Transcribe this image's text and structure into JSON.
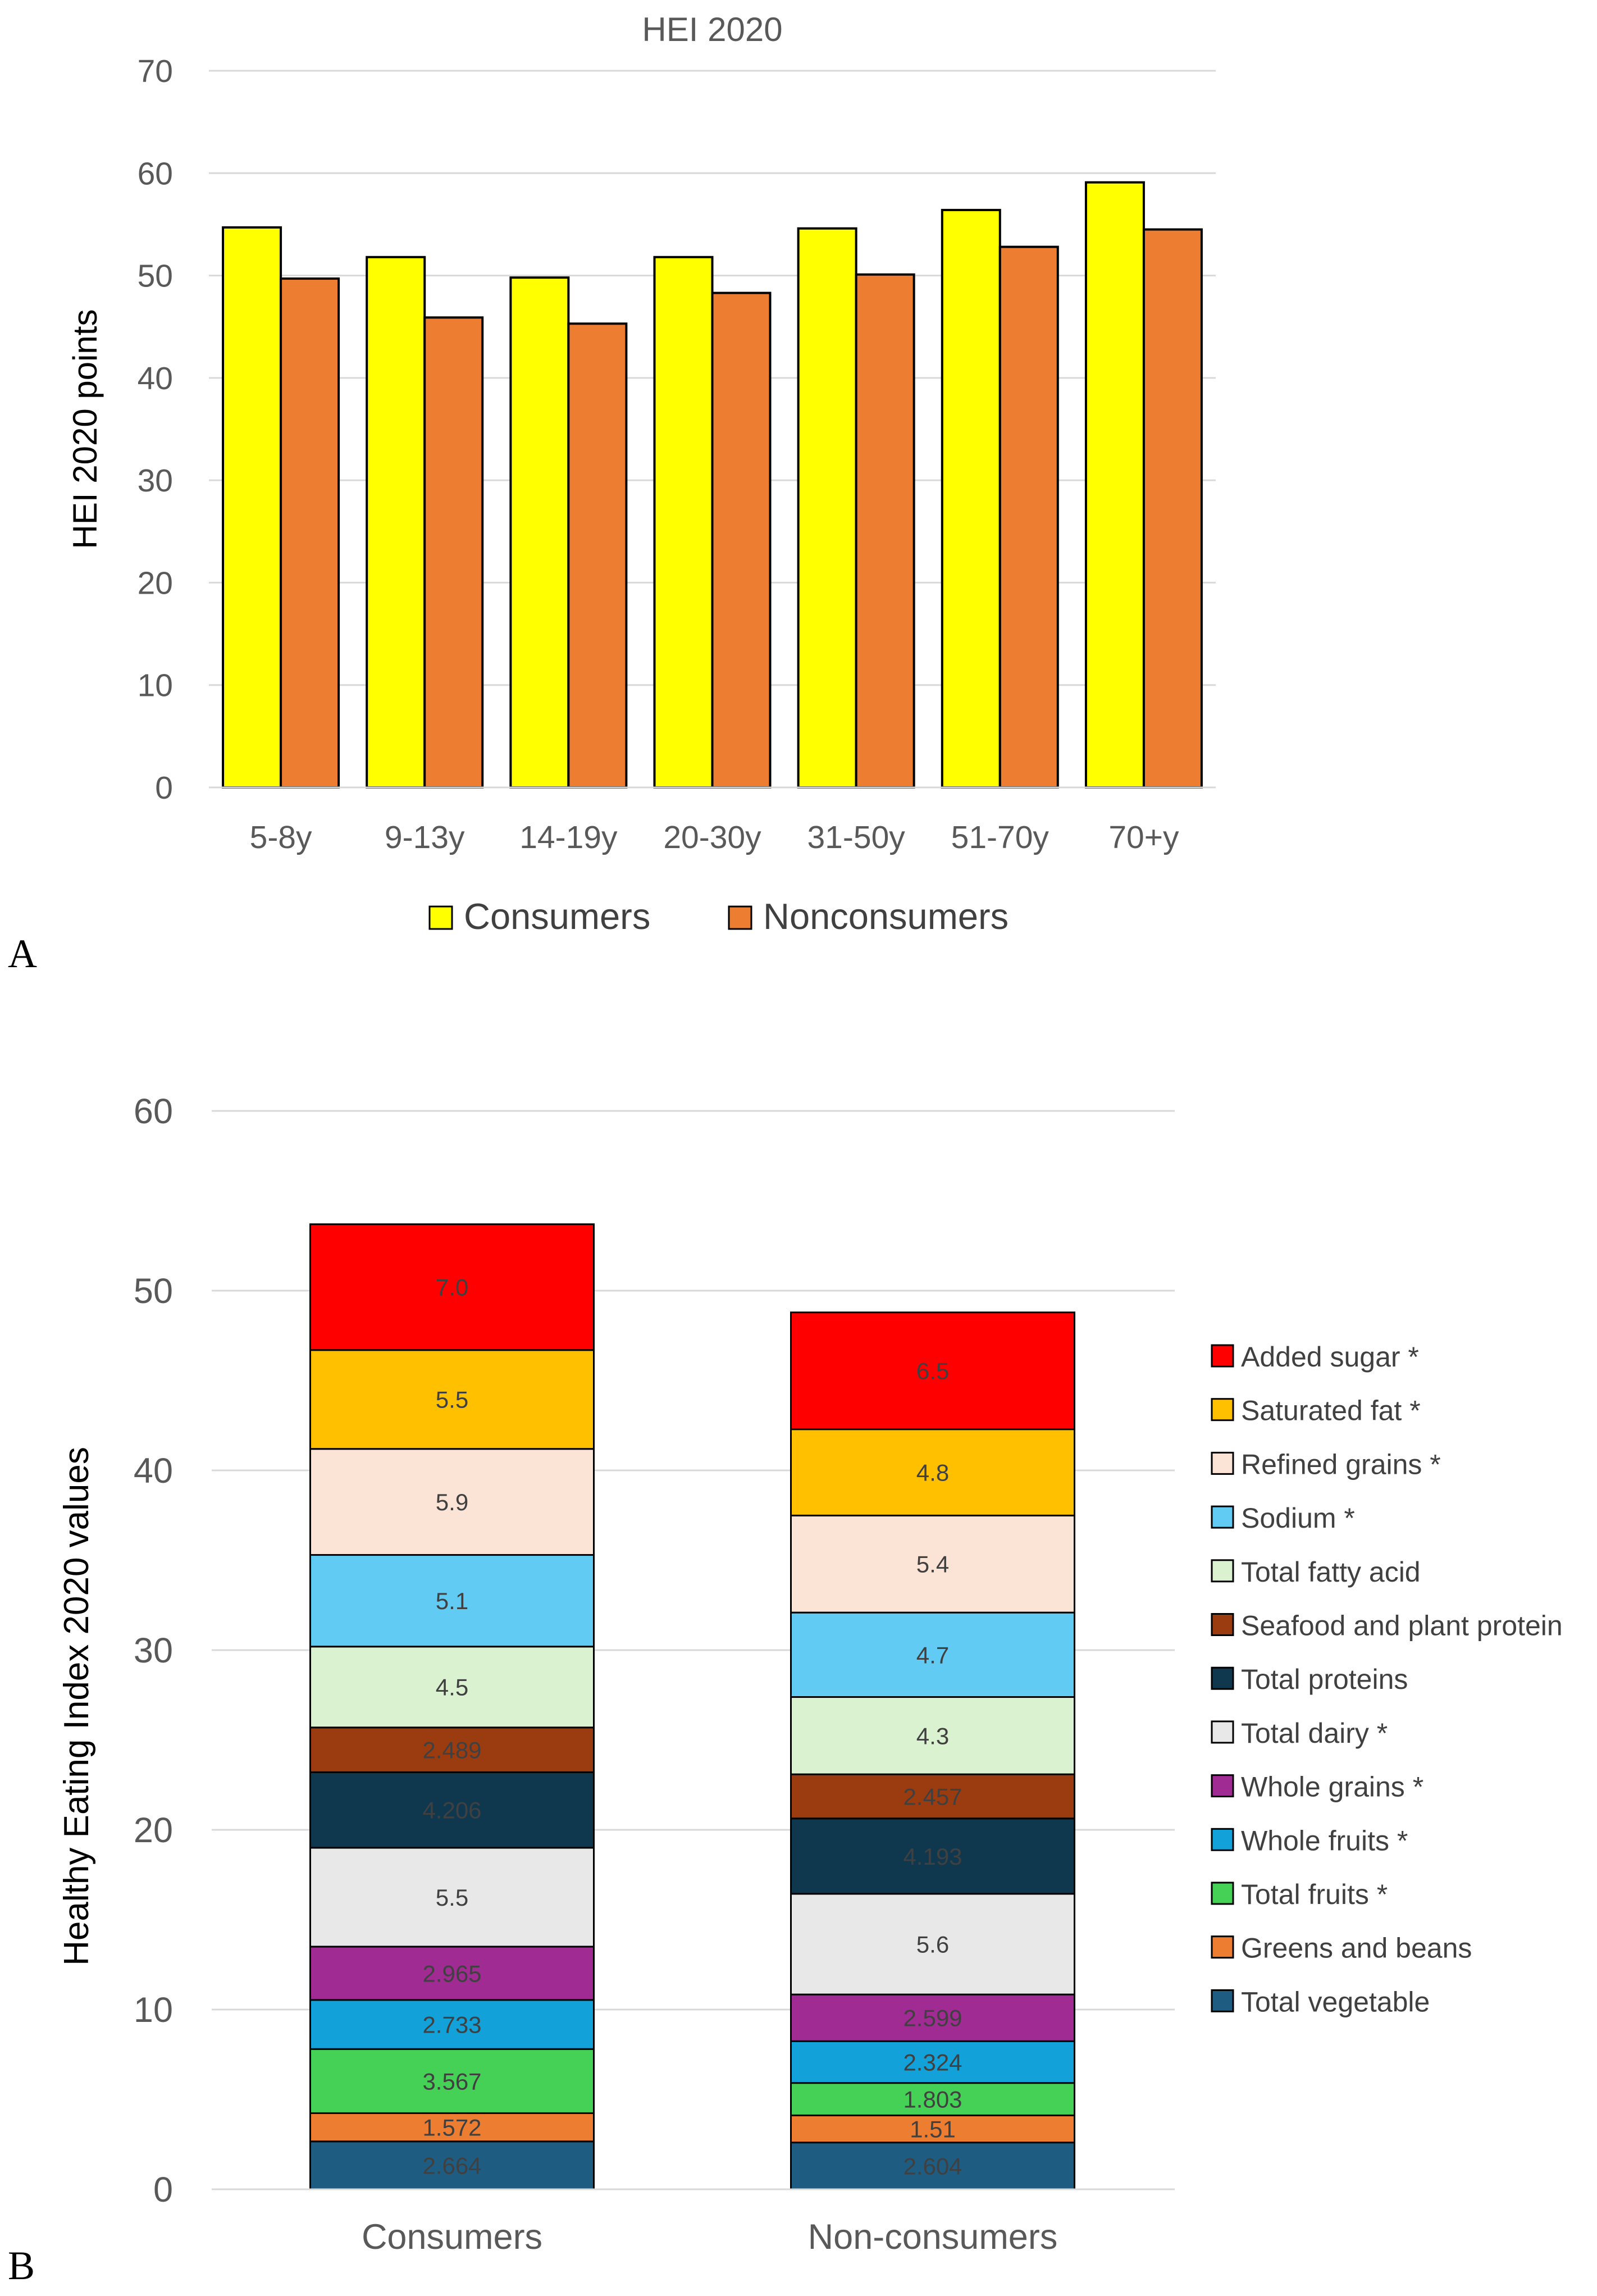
{
  "panel_labels": {
    "a": "A",
    "b": "B"
  },
  "chart_data": [
    {
      "type": "bar",
      "title": "HEI 2020",
      "xlabel": "",
      "ylabel": "HEI 2020 points",
      "ylim": [
        0,
        70
      ],
      "yticks": [
        0,
        10,
        20,
        30,
        40,
        50,
        60,
        70
      ],
      "grid": true,
      "legend_position": "bottom",
      "categories": [
        "5-8y",
        "9-13y",
        "14-19y",
        "20-30y",
        "31-50y",
        "51-70y",
        "70+y"
      ],
      "series": [
        {
          "name": "Consumers",
          "color": "#FFFF00",
          "values": [
            54.7,
            51.8,
            49.8,
            51.8,
            54.6,
            56.4,
            59.1
          ]
        },
        {
          "name": "Nonconsumers",
          "color": "#ED7D31",
          "values": [
            49.7,
            45.9,
            45.3,
            48.3,
            50.1,
            52.8,
            54.5
          ]
        }
      ]
    },
    {
      "type": "bar",
      "stacked": true,
      "title": "",
      "xlabel": "",
      "ylabel": "Healthy Eating Index 2020 values",
      "ylim": [
        0,
        60
      ],
      "yticks": [
        0,
        10,
        20,
        30,
        40,
        50,
        60
      ],
      "grid": true,
      "legend_position": "right",
      "categories": [
        "Consumers",
        "Non-consumers"
      ],
      "series": [
        {
          "name": "Total vegetable",
          "color": "#1F5C82",
          "values": [
            2.664,
            2.604
          ],
          "labels": [
            "2.664",
            "2.604"
          ]
        },
        {
          "name": "Greens and beans",
          "color": "#ED7D31",
          "values": [
            1.572,
            1.51
          ],
          "labels": [
            "1.572",
            "1.51"
          ]
        },
        {
          "name": "Total fruits  *",
          "color": "#44D155",
          "values": [
            3.567,
            1.803
          ],
          "labels": [
            "3.567",
            "1.803"
          ]
        },
        {
          "name": "Whole fruits *",
          "color": "#12A1D9",
          "values": [
            2.733,
            2.324
          ],
          "labels": [
            "2.733",
            "2.324"
          ]
        },
        {
          "name": "Whole grains *",
          "color": "#A02B93",
          "values": [
            2.965,
            2.599
          ],
          "labels": [
            "2.965",
            "2.599"
          ]
        },
        {
          "name": "Total dairy *",
          "color": "#E8E8E8",
          "values": [
            5.5,
            5.6
          ],
          "labels": [
            "5.5",
            "5.6"
          ]
        },
        {
          "name": "Total proteins",
          "color": "#0F384F",
          "values": [
            4.206,
            4.193
          ],
          "labels": [
            "4.206",
            "4.193"
          ]
        },
        {
          "name": "Seafood and plant protein",
          "color": "#9B3C10",
          "values": [
            2.489,
            2.457
          ],
          "labels": [
            "2.489",
            "2.457"
          ]
        },
        {
          "name": "Total fatty acid",
          "color": "#DAF2D0",
          "values": [
            4.5,
            4.3
          ],
          "labels": [
            "4.5",
            "4.3"
          ]
        },
        {
          "name": "Sodium *",
          "color": "#61CBF3",
          "values": [
            5.1,
            4.7
          ],
          "labels": [
            "5.1",
            "4.7"
          ]
        },
        {
          "name": "Refined grains *",
          "color": "#FBE3D6",
          "values": [
            5.9,
            5.4
          ],
          "labels": [
            "5.9",
            "5.4"
          ]
        },
        {
          "name": "Saturated fat *",
          "color": "#FFC000",
          "values": [
            5.5,
            4.8
          ],
          "labels": [
            "5.5",
            "4.8"
          ]
        },
        {
          "name": "Added sugar *",
          "color": "#FF0000",
          "values": [
            7.0,
            6.5
          ],
          "labels": [
            "7.0",
            "6.5"
          ]
        }
      ]
    }
  ]
}
